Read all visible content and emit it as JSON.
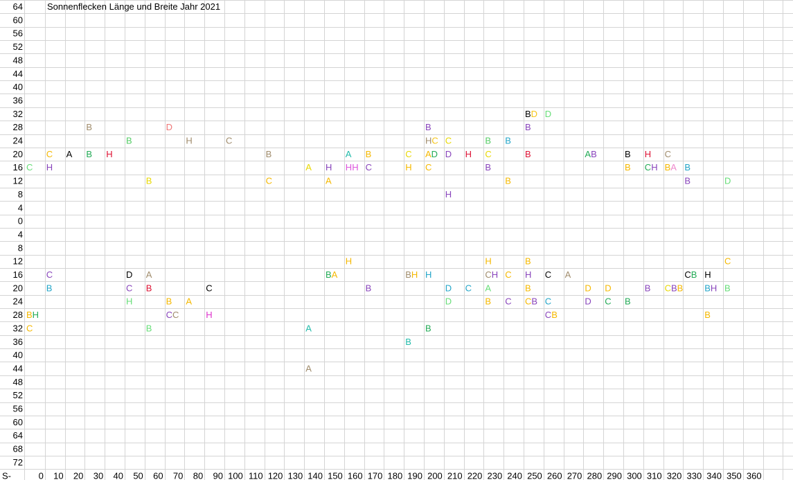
{
  "chart_data": {
    "type": "scatter",
    "title": "Sonnenflecken Länge und Breite Jahr 2021",
    "y_labels": [
      "64",
      "60",
      "56",
      "52",
      "48",
      "44",
      "40",
      "36",
      "32",
      "28",
      "24",
      "20",
      "16",
      "12",
      "8",
      "4",
      "0",
      "4",
      "8",
      "12",
      "16",
      "20",
      "24",
      "28",
      "32",
      "36",
      "40",
      "44",
      "48",
      "52",
      "56",
      "60",
      "64",
      "68",
      "72"
    ],
    "x_prefix": "S-",
    "x_labels": [
      "0",
      "10",
      "20",
      "30",
      "40",
      "50",
      "60",
      "70",
      "80",
      "90",
      "100",
      "110",
      "120",
      "130",
      "140",
      "150",
      "160",
      "170",
      "180",
      "190",
      "200",
      "210",
      "220",
      "230",
      "240",
      "250",
      "260",
      "270",
      "280",
      "290",
      "300",
      "310",
      "320",
      "330",
      "340",
      "350",
      "360"
    ],
    "grid": true,
    "points": [
      {
        "lon": 250,
        "lat": 32,
        "labels": [
          {
            "t": "B",
            "c": "#000000"
          },
          {
            "t": "D",
            "c": "#f5c518"
          }
        ]
      },
      {
        "lon": 260,
        "lat": 32,
        "labels": [
          {
            "t": "D",
            "c": "#66dd77"
          }
        ]
      },
      {
        "lon": 30,
        "lat": 28,
        "labels": [
          {
            "t": "B",
            "c": "#a08c6c"
          }
        ]
      },
      {
        "lon": 70,
        "lat": 28,
        "labels": [
          {
            "t": "D",
            "c": "#ee7777"
          }
        ]
      },
      {
        "lon": 200,
        "lat": 28,
        "labels": [
          {
            "t": "B",
            "c": "#8844bb"
          }
        ]
      },
      {
        "lon": 250,
        "lat": 28,
        "labels": [
          {
            "t": "B",
            "c": "#8844bb"
          }
        ]
      },
      {
        "lon": 50,
        "lat": 24,
        "labels": [
          {
            "t": "B",
            "c": "#55cc66"
          }
        ]
      },
      {
        "lon": 80,
        "lat": 24,
        "labels": [
          {
            "t": "H",
            "c": "#a08c6c"
          }
        ]
      },
      {
        "lon": 100,
        "lat": 24,
        "labels": [
          {
            "t": "C",
            "c": "#a08c6c"
          }
        ]
      },
      {
        "lon": 200,
        "lat": 24,
        "labels": [
          {
            "t": "H",
            "c": "#a08c6c"
          },
          {
            "t": "C",
            "c": "#f5c518"
          }
        ]
      },
      {
        "lon": 210,
        "lat": 24,
        "labels": [
          {
            "t": "C",
            "c": "#e8d800"
          }
        ]
      },
      {
        "lon": 230,
        "lat": 24,
        "labels": [
          {
            "t": "B",
            "c": "#55cc66"
          }
        ]
      },
      {
        "lon": 240,
        "lat": 24,
        "labels": [
          {
            "t": "B",
            "c": "#22a5c8"
          }
        ]
      },
      {
        "lon": 10,
        "lat": 20,
        "labels": [
          {
            "t": "C",
            "c": "#f5b800"
          }
        ]
      },
      {
        "lon": 20,
        "lat": 20,
        "labels": [
          {
            "t": "A",
            "c": "#000000"
          }
        ]
      },
      {
        "lon": 30,
        "lat": 20,
        "labels": [
          {
            "t": "B",
            "c": "#22aa55"
          }
        ]
      },
      {
        "lon": 40,
        "lat": 20,
        "labels": [
          {
            "t": "H",
            "c": "#dd1133"
          }
        ]
      },
      {
        "lon": 120,
        "lat": 20,
        "labels": [
          {
            "t": "B",
            "c": "#a08c6c"
          }
        ]
      },
      {
        "lon": 160,
        "lat": 20,
        "labels": [
          {
            "t": "A",
            "c": "#22bbaa"
          }
        ]
      },
      {
        "lon": 170,
        "lat": 20,
        "labels": [
          {
            "t": "B",
            "c": "#f5b800"
          }
        ]
      },
      {
        "lon": 190,
        "lat": 20,
        "labels": [
          {
            "t": "C",
            "c": "#e8d800"
          }
        ]
      },
      {
        "lon": 200,
        "lat": 20,
        "labels": [
          {
            "t": "A",
            "c": "#f5b800"
          },
          {
            "t": "D",
            "c": "#22aa55"
          }
        ]
      },
      {
        "lon": 210,
        "lat": 20,
        "labels": [
          {
            "t": "D",
            "c": "#8844bb"
          }
        ]
      },
      {
        "lon": 220,
        "lat": 20,
        "labels": [
          {
            "t": "H",
            "c": "#dd1133"
          }
        ]
      },
      {
        "lon": 230,
        "lat": 20,
        "labels": [
          {
            "t": "C",
            "c": "#e8d800"
          }
        ]
      },
      {
        "lon": 250,
        "lat": 20,
        "labels": [
          {
            "t": "B",
            "c": "#dd1133"
          }
        ]
      },
      {
        "lon": 280,
        "lat": 20,
        "labels": [
          {
            "t": "A",
            "c": "#22aa55"
          },
          {
            "t": "B",
            "c": "#8844bb"
          }
        ]
      },
      {
        "lon": 300,
        "lat": 20,
        "labels": [
          {
            "t": "B",
            "c": "#000000"
          }
        ]
      },
      {
        "lon": 310,
        "lat": 20,
        "labels": [
          {
            "t": "H",
            "c": "#dd1133"
          }
        ]
      },
      {
        "lon": 320,
        "lat": 20,
        "labels": [
          {
            "t": "C",
            "c": "#a08c6c"
          }
        ]
      },
      {
        "lon": 0,
        "lat": 16,
        "labels": [
          {
            "t": "C",
            "c": "#66dd77"
          }
        ]
      },
      {
        "lon": 10,
        "lat": 16,
        "labels": [
          {
            "t": "H",
            "c": "#8844bb"
          }
        ]
      },
      {
        "lon": 140,
        "lat": 16,
        "labels": [
          {
            "t": "A",
            "c": "#e8d800"
          }
        ]
      },
      {
        "lon": 150,
        "lat": 16,
        "labels": [
          {
            "t": "H",
            "c": "#8844bb"
          }
        ]
      },
      {
        "lon": 160,
        "lat": 16,
        "labels": [
          {
            "t": "H",
            "c": "#dd55dd"
          },
          {
            "t": "H",
            "c": "#dd55dd"
          }
        ]
      },
      {
        "lon": 170,
        "lat": 16,
        "labels": [
          {
            "t": "C",
            "c": "#8844bb"
          }
        ]
      },
      {
        "lon": 190,
        "lat": 16,
        "labels": [
          {
            "t": "H",
            "c": "#f5b800"
          }
        ]
      },
      {
        "lon": 200,
        "lat": 16,
        "labels": [
          {
            "t": "C",
            "c": "#f5b800"
          }
        ]
      },
      {
        "lon": 230,
        "lat": 16,
        "labels": [
          {
            "t": "B",
            "c": "#8844bb"
          }
        ]
      },
      {
        "lon": 300,
        "lat": 16,
        "labels": [
          {
            "t": "B",
            "c": "#f5b800"
          }
        ]
      },
      {
        "lon": 310,
        "lat": 16,
        "labels": [
          {
            "t": "C",
            "c": "#22aa55"
          },
          {
            "t": "H",
            "c": "#8844bb"
          }
        ]
      },
      {
        "lon": 320,
        "lat": 16,
        "labels": [
          {
            "t": "B",
            "c": "#f5b800"
          },
          {
            "t": "A",
            "c": "#ee88cc"
          }
        ]
      },
      {
        "lon": 330,
        "lat": 16,
        "labels": [
          {
            "t": "B",
            "c": "#22a5c8"
          }
        ]
      },
      {
        "lon": 60,
        "lat": 12,
        "labels": [
          {
            "t": "B",
            "c": "#e8d800"
          }
        ]
      },
      {
        "lon": 120,
        "lat": 12,
        "labels": [
          {
            "t": "C",
            "c": "#f5b800"
          }
        ]
      },
      {
        "lon": 150,
        "lat": 12,
        "labels": [
          {
            "t": "A",
            "c": "#f5b800"
          }
        ]
      },
      {
        "lon": 240,
        "lat": 12,
        "labels": [
          {
            "t": "B",
            "c": "#f5b800"
          }
        ]
      },
      {
        "lon": 330,
        "lat": 12,
        "labels": [
          {
            "t": "B",
            "c": "#8844bb"
          }
        ]
      },
      {
        "lon": 350,
        "lat": 12,
        "labels": [
          {
            "t": "D",
            "c": "#66dd77"
          }
        ]
      },
      {
        "lon": 210,
        "lat": 8,
        "labels": [
          {
            "t": "H",
            "c": "#8844bb"
          }
        ]
      },
      {
        "lon": 160,
        "lat": -12,
        "labels": [
          {
            "t": "H",
            "c": "#f5b800"
          }
        ]
      },
      {
        "lon": 230,
        "lat": -12,
        "labels": [
          {
            "t": "H",
            "c": "#f5b800"
          }
        ]
      },
      {
        "lon": 250,
        "lat": -12,
        "labels": [
          {
            "t": "B",
            "c": "#f5b800"
          }
        ]
      },
      {
        "lon": 350,
        "lat": -12,
        "labels": [
          {
            "t": "C",
            "c": "#f5b800"
          }
        ]
      },
      {
        "lon": 10,
        "lat": -16,
        "labels": [
          {
            "t": "C",
            "c": "#8844bb"
          }
        ]
      },
      {
        "lon": 50,
        "lat": -16,
        "labels": [
          {
            "t": "D",
            "c": "#000000"
          }
        ]
      },
      {
        "lon": 60,
        "lat": -16,
        "labels": [
          {
            "t": "A",
            "c": "#a08c6c"
          }
        ]
      },
      {
        "lon": 150,
        "lat": -16,
        "labels": [
          {
            "t": "B",
            "c": "#22aa55"
          },
          {
            "t": "A",
            "c": "#f5b800"
          }
        ]
      },
      {
        "lon": 190,
        "lat": -16,
        "labels": [
          {
            "t": "B",
            "c": "#a08c6c"
          },
          {
            "t": "H",
            "c": "#f5b800"
          }
        ]
      },
      {
        "lon": 200,
        "lat": -16,
        "labels": [
          {
            "t": "H",
            "c": "#22a5c8"
          }
        ]
      },
      {
        "lon": 230,
        "lat": -16,
        "labels": [
          {
            "t": "C",
            "c": "#a08c6c"
          },
          {
            "t": "H",
            "c": "#8844bb"
          }
        ]
      },
      {
        "lon": 240,
        "lat": -16,
        "labels": [
          {
            "t": "C",
            "c": "#f5b800"
          }
        ]
      },
      {
        "lon": 250,
        "lat": -16,
        "labels": [
          {
            "t": "H",
            "c": "#8844bb"
          }
        ]
      },
      {
        "lon": 260,
        "lat": -16,
        "labels": [
          {
            "t": "C",
            "c": "#000000"
          }
        ]
      },
      {
        "lon": 270,
        "lat": -16,
        "labels": [
          {
            "t": "A",
            "c": "#a08c6c"
          }
        ]
      },
      {
        "lon": 330,
        "lat": -16,
        "labels": [
          {
            "t": "C",
            "c": "#000000"
          },
          {
            "t": "B",
            "c": "#22aa55"
          }
        ]
      },
      {
        "lon": 340,
        "lat": -16,
        "labels": [
          {
            "t": "H",
            "c": "#000000"
          }
        ]
      },
      {
        "lon": 10,
        "lat": -20,
        "labels": [
          {
            "t": "B",
            "c": "#22a5c8"
          }
        ]
      },
      {
        "lon": 50,
        "lat": -20,
        "labels": [
          {
            "t": "C",
            "c": "#8844bb"
          }
        ]
      },
      {
        "lon": 60,
        "lat": -20,
        "labels": [
          {
            "t": "B",
            "c": "#dd1133"
          }
        ]
      },
      {
        "lon": 90,
        "lat": -20,
        "labels": [
          {
            "t": "C",
            "c": "#000000"
          }
        ]
      },
      {
        "lon": 170,
        "lat": -20,
        "labels": [
          {
            "t": "B",
            "c": "#8844bb"
          }
        ]
      },
      {
        "lon": 210,
        "lat": -20,
        "labels": [
          {
            "t": "D",
            "c": "#22a5c8"
          }
        ]
      },
      {
        "lon": 220,
        "lat": -20,
        "labels": [
          {
            "t": "C",
            "c": "#22a5c8"
          }
        ]
      },
      {
        "lon": 230,
        "lat": -20,
        "labels": [
          {
            "t": "A",
            "c": "#66dd77"
          }
        ]
      },
      {
        "lon": 250,
        "lat": -20,
        "labels": [
          {
            "t": "B",
            "c": "#f5b800"
          }
        ]
      },
      {
        "lon": 280,
        "lat": -20,
        "labels": [
          {
            "t": "D",
            "c": "#f5b800"
          }
        ]
      },
      {
        "lon": 290,
        "lat": -20,
        "labels": [
          {
            "t": "D",
            "c": "#f5b800"
          }
        ]
      },
      {
        "lon": 310,
        "lat": -20,
        "labels": [
          {
            "t": "B",
            "c": "#8844bb"
          }
        ]
      },
      {
        "lon": 320,
        "lat": -20,
        "labels": [
          {
            "t": "C",
            "c": "#e8d800"
          },
          {
            "t": "B",
            "c": "#8844bb"
          },
          {
            "t": "B",
            "c": "#f5b800"
          }
        ]
      },
      {
        "lon": 340,
        "lat": -20,
        "labels": [
          {
            "t": "B",
            "c": "#22a5c8"
          },
          {
            "t": "H",
            "c": "#8844bb"
          }
        ]
      },
      {
        "lon": 350,
        "lat": -20,
        "labels": [
          {
            "t": "B",
            "c": "#66dd77"
          }
        ]
      },
      {
        "lon": 50,
        "lat": -24,
        "labels": [
          {
            "t": "H",
            "c": "#66dd77"
          }
        ]
      },
      {
        "lon": 70,
        "lat": -24,
        "labels": [
          {
            "t": "B",
            "c": "#f5b800"
          }
        ]
      },
      {
        "lon": 80,
        "lat": -24,
        "labels": [
          {
            "t": "A",
            "c": "#f5b800"
          }
        ]
      },
      {
        "lon": 210,
        "lat": -24,
        "labels": [
          {
            "t": "D",
            "c": "#66dd77"
          }
        ]
      },
      {
        "lon": 230,
        "lat": -24,
        "labels": [
          {
            "t": "B",
            "c": "#f5b800"
          }
        ]
      },
      {
        "lon": 240,
        "lat": -24,
        "labels": [
          {
            "t": "C",
            "c": "#8844bb"
          }
        ]
      },
      {
        "lon": 250,
        "lat": -24,
        "labels": [
          {
            "t": "C",
            "c": "#f5b800"
          },
          {
            "t": "B",
            "c": "#8844bb"
          }
        ]
      },
      {
        "lon": 260,
        "lat": -24,
        "labels": [
          {
            "t": "C",
            "c": "#22a5c8"
          }
        ]
      },
      {
        "lon": 280,
        "lat": -24,
        "labels": [
          {
            "t": "D",
            "c": "#8844bb"
          }
        ]
      },
      {
        "lon": 290,
        "lat": -24,
        "labels": [
          {
            "t": "C",
            "c": "#22aa55"
          }
        ]
      },
      {
        "lon": 300,
        "lat": -24,
        "labels": [
          {
            "t": "B",
            "c": "#22aa55"
          }
        ]
      },
      {
        "lon": 0,
        "lat": -28,
        "labels": [
          {
            "t": "B",
            "c": "#f5b800"
          },
          {
            "t": "H",
            "c": "#22aa55"
          }
        ]
      },
      {
        "lon": 70,
        "lat": -28,
        "labels": [
          {
            "t": "C",
            "c": "#8844bb"
          },
          {
            "t": "C",
            "c": "#a08c6c"
          }
        ]
      },
      {
        "lon": 90,
        "lat": -28,
        "labels": [
          {
            "t": "H",
            "c": "#dd33cc"
          }
        ]
      },
      {
        "lon": 260,
        "lat": -28,
        "labels": [
          {
            "t": "C",
            "c": "#8844bb"
          },
          {
            "t": "B",
            "c": "#f5b800"
          }
        ]
      },
      {
        "lon": 340,
        "lat": -28,
        "labels": [
          {
            "t": "B",
            "c": "#f5b800"
          }
        ]
      },
      {
        "lon": 0,
        "lat": -32,
        "labels": [
          {
            "t": "C",
            "c": "#f5b800"
          }
        ]
      },
      {
        "lon": 60,
        "lat": -32,
        "labels": [
          {
            "t": "B",
            "c": "#66dd77"
          }
        ]
      },
      {
        "lon": 140,
        "lat": -32,
        "labels": [
          {
            "t": "A",
            "c": "#22bbaa"
          }
        ]
      },
      {
        "lon": 200,
        "lat": -32,
        "labels": [
          {
            "t": "B",
            "c": "#22aa55"
          }
        ]
      },
      {
        "lon": 190,
        "lat": -36,
        "labels": [
          {
            "t": "B",
            "c": "#22bbaa"
          }
        ]
      },
      {
        "lon": 140,
        "lat": -44,
        "labels": [
          {
            "t": "A",
            "c": "#a08c6c"
          }
        ]
      }
    ]
  }
}
